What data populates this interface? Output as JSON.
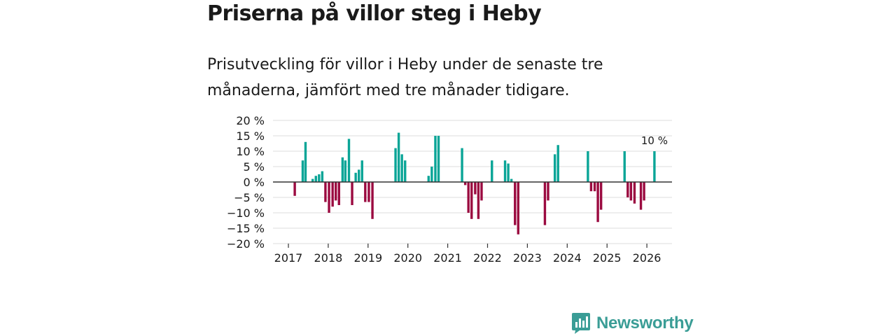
{
  "header": {
    "title": "Priserna på villor steg i Heby",
    "subtitle": "Prisutveckling för villor i Heby under de senaste tre månaderna, jämfört med tre månader tidigare."
  },
  "brand": {
    "name": "Newsworthy",
    "icon": "bar-chart-speech-bubble-icon"
  },
  "colors": {
    "positive": "#0aa597",
    "negative": "#9b0a40",
    "brand": "#3a9d96"
  },
  "chart_data": {
    "type": "bar",
    "title": "Priserna på villor steg i Heby",
    "xlabel": "",
    "ylabel": "",
    "ylim": [
      -20,
      20
    ],
    "y_ticks": [
      20,
      15,
      10,
      5,
      0,
      -5,
      -10,
      -15,
      -20
    ],
    "y_tick_labels": [
      "20 %",
      "15 %",
      "10 %",
      "5 %",
      "0 %",
      "−5 %",
      "−10 %",
      "−15 %",
      "−20 %"
    ],
    "x_ticks": [
      "2017",
      "2018",
      "2019",
      "2020",
      "2021",
      "2022",
      "2023",
      "2024",
      "2025",
      "2026"
    ],
    "grid": true,
    "annotation": {
      "text": "10 %",
      "target": "last"
    },
    "series": [
      {
        "name": "Prisutveckling (%)",
        "points": [
          {
            "x": 2017.16,
            "y": -4.5
          },
          {
            "x": 2017.36,
            "y": 7
          },
          {
            "x": 2017.43,
            "y": 13
          },
          {
            "x": 2017.61,
            "y": 1
          },
          {
            "x": 2017.69,
            "y": 2
          },
          {
            "x": 2017.77,
            "y": 2.5
          },
          {
            "x": 2017.85,
            "y": 3.5
          },
          {
            "x": 2017.93,
            "y": -6.5
          },
          {
            "x": 2018.02,
            "y": -10
          },
          {
            "x": 2018.11,
            "y": -8
          },
          {
            "x": 2018.19,
            "y": -6
          },
          {
            "x": 2018.27,
            "y": -7.5
          },
          {
            "x": 2018.36,
            "y": 8
          },
          {
            "x": 2018.43,
            "y": 7
          },
          {
            "x": 2018.52,
            "y": 14
          },
          {
            "x": 2018.6,
            "y": -7.5
          },
          {
            "x": 2018.69,
            "y": 3
          },
          {
            "x": 2018.77,
            "y": 4
          },
          {
            "x": 2018.85,
            "y": 7
          },
          {
            "x": 2018.93,
            "y": -6.5
          },
          {
            "x": 2019.02,
            "y": -6.5
          },
          {
            "x": 2019.11,
            "y": -12
          },
          {
            "x": 2019.69,
            "y": 11
          },
          {
            "x": 2019.77,
            "y": 16
          },
          {
            "x": 2019.85,
            "y": 9
          },
          {
            "x": 2019.93,
            "y": 7
          },
          {
            "x": 2020.52,
            "y": 2
          },
          {
            "x": 2020.6,
            "y": 5
          },
          {
            "x": 2020.69,
            "y": 15
          },
          {
            "x": 2020.77,
            "y": 15
          },
          {
            "x": 2021.36,
            "y": 11
          },
          {
            "x": 2021.44,
            "y": -1
          },
          {
            "x": 2021.52,
            "y": -10
          },
          {
            "x": 2021.6,
            "y": -12
          },
          {
            "x": 2021.69,
            "y": -4
          },
          {
            "x": 2021.77,
            "y": -12
          },
          {
            "x": 2021.85,
            "y": -6
          },
          {
            "x": 2022.11,
            "y": 7
          },
          {
            "x": 2022.44,
            "y": 7
          },
          {
            "x": 2022.52,
            "y": 6
          },
          {
            "x": 2022.6,
            "y": 1
          },
          {
            "x": 2022.69,
            "y": -14
          },
          {
            "x": 2022.77,
            "y": -17
          },
          {
            "x": 2023.44,
            "y": -14
          },
          {
            "x": 2023.52,
            "y": -6
          },
          {
            "x": 2023.69,
            "y": 9
          },
          {
            "x": 2023.77,
            "y": 12
          },
          {
            "x": 2024.52,
            "y": 10
          },
          {
            "x": 2024.6,
            "y": -3
          },
          {
            "x": 2024.69,
            "y": -3
          },
          {
            "x": 2024.77,
            "y": -13
          },
          {
            "x": 2024.85,
            "y": -9
          },
          {
            "x": 2025.44,
            "y": 10
          },
          {
            "x": 2025.52,
            "y": -5
          },
          {
            "x": 2025.6,
            "y": -6
          },
          {
            "x": 2025.69,
            "y": -7
          },
          {
            "x": 2025.85,
            "y": -9
          },
          {
            "x": 2025.93,
            "y": -6
          },
          {
            "x": 2026.19,
            "y": 10
          }
        ]
      }
    ]
  }
}
